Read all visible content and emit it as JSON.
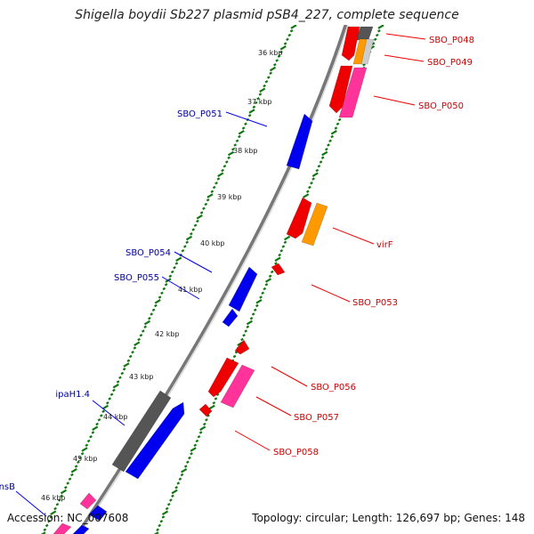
{
  "title": "Shigella boydii Sb227 plasmid pSB4_227, complete sequence",
  "footer": {
    "accession": "Accession: NC_007608",
    "summary": "Topology: circular; Length: 126,697 bp; Genes: 148"
  },
  "colors": {
    "forward_gene": "#0000ee",
    "reverse_gene": "#ee0000",
    "rna": "#ff3399",
    "orange_feature": "#ff9900",
    "gray_feature": "#555555",
    "forward_label": "#000099",
    "reverse_label": "#cc0000",
    "tick": "#117711",
    "backbone": "#777777"
  },
  "kbp_labels": [
    "36 kbp",
    "37 kbp",
    "38 kbp",
    "39 kbp",
    "40 kbp",
    "41 kbp",
    "42 kbp",
    "43 kbp",
    "44 kbp",
    "45 kbp",
    "46 kbp"
  ],
  "gene_labels": {
    "reverse": [
      "SBO_P048",
      "SBO_P049",
      "SBO_P050",
      "virF",
      "SBO_P053",
      "SBO_P056",
      "SBO_P057",
      "SBO_P058"
    ],
    "forward": [
      "SBO_P051",
      "SBO_P054",
      "SBO_P055",
      "ipaH1.4",
      "insB"
    ]
  }
}
